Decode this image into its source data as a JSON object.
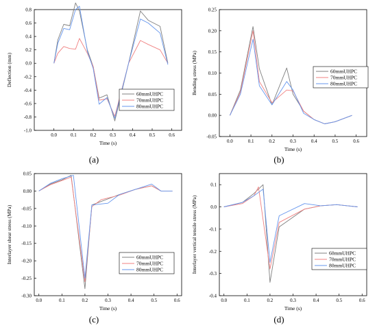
{
  "figure": {
    "legend_names": [
      "60mmUHPC",
      "70mmUHPC",
      "80mmUHPC"
    ],
    "series_colors": [
      "#7f7f7f",
      "#f08080",
      "#6495ed"
    ]
  },
  "chart_data": [
    {
      "type": "line",
      "panel_label": "(a)",
      "xlabel": "Time (s)",
      "ylabel": "Deflection (mm)",
      "xlim": [
        -0.1,
        0.65
      ],
      "ylim": [
        -1.0,
        0.8
      ],
      "xticks": [
        "0.0",
        "0.1",
        "0.2",
        "0.3",
        "0.4",
        "0.5",
        "0.6"
      ],
      "xtick_values": [
        0.0,
        0.1,
        0.2,
        0.3,
        0.4,
        0.5,
        0.6
      ],
      "yticks": [
        "-1.0",
        "-0.8",
        "-0.6",
        "-0.4",
        "-0.2",
        "0.0",
        "0.2",
        "0.4",
        "0.6",
        "0.8"
      ],
      "ytick_values": [
        -1.0,
        -0.8,
        -0.6,
        -0.4,
        -0.2,
        0.0,
        0.2,
        0.4,
        0.6,
        0.8
      ],
      "legend_position": "lower-right",
      "series": [
        {
          "name": "60mmUHPC",
          "color": "#7f7f7f",
          "x": [
            0.0,
            0.02,
            0.05,
            0.08,
            0.11,
            0.13,
            0.17,
            0.2,
            0.23,
            0.27,
            0.31,
            0.38,
            0.44,
            0.48,
            0.54,
            0.58
          ],
          "y": [
            0.0,
            0.35,
            0.58,
            0.56,
            0.9,
            0.78,
            0.2,
            -0.05,
            -0.52,
            -0.47,
            -0.86,
            0.0,
            0.78,
            0.64,
            0.55,
            0.0
          ]
        },
        {
          "name": "70mmUHPC",
          "color": "#f08080",
          "x": [
            0.0,
            0.02,
            0.05,
            0.08,
            0.11,
            0.13,
            0.17,
            0.2,
            0.23,
            0.27,
            0.31,
            0.38,
            0.44,
            0.48,
            0.54,
            0.58
          ],
          "y": [
            0.0,
            0.15,
            0.25,
            0.22,
            0.21,
            0.37,
            0.15,
            -0.05,
            -0.55,
            -0.53,
            -0.79,
            0.0,
            0.34,
            0.28,
            0.2,
            0.0
          ]
        },
        {
          "name": "80mmUHPC",
          "color": "#6495ed",
          "x": [
            0.0,
            0.02,
            0.05,
            0.08,
            0.11,
            0.13,
            0.17,
            0.2,
            0.23,
            0.27,
            0.31,
            0.38,
            0.44,
            0.48,
            0.54,
            0.58
          ],
          "y": [
            0.0,
            0.3,
            0.52,
            0.5,
            0.8,
            0.85,
            0.18,
            -0.08,
            -0.61,
            -0.51,
            -0.82,
            0.0,
            0.66,
            0.6,
            0.45,
            -0.02
          ]
        }
      ]
    },
    {
      "type": "line",
      "panel_label": "(b)",
      "xlabel": "Time (s)",
      "ylabel": "Bending stress (MPa)",
      "xlim": [
        -0.05,
        0.65
      ],
      "ylim": [
        -0.05,
        0.25
      ],
      "xticks": [
        "0.0",
        "0.1",
        "0.2",
        "0.3",
        "0.4",
        "0.5",
        "0.6"
      ],
      "xtick_values": [
        0.0,
        0.1,
        0.2,
        0.3,
        0.4,
        0.5,
        0.6
      ],
      "yticks": [
        "-0.05",
        "0.00",
        "0.05",
        "0.10",
        "0.15",
        "0.20",
        "0.25"
      ],
      "ytick_values": [
        -0.05,
        0.0,
        0.05,
        0.1,
        0.15,
        0.2,
        0.25
      ],
      "legend_position": "right",
      "series": [
        {
          "name": "60mmUHPC",
          "color": "#7f7f7f",
          "x": [
            0.0,
            0.05,
            0.11,
            0.14,
            0.2,
            0.27,
            0.3,
            0.35,
            0.4,
            0.45,
            0.5,
            0.58
          ],
          "y": [
            0.0,
            0.06,
            0.21,
            0.11,
            0.025,
            0.112,
            0.05,
            0.01,
            -0.01,
            -0.02,
            -0.015,
            0.0
          ]
        },
        {
          "name": "70mmUHPC",
          "color": "#f08080",
          "x": [
            0.0,
            0.05,
            0.11,
            0.14,
            0.2,
            0.27,
            0.3,
            0.35,
            0.4,
            0.45,
            0.5,
            0.58
          ],
          "y": [
            0.0,
            0.055,
            0.2,
            0.08,
            0.03,
            0.06,
            0.058,
            0.01,
            -0.01,
            -0.02,
            -0.015,
            0.0
          ]
        },
        {
          "name": "80mmUHPC",
          "color": "#6495ed",
          "x": [
            0.0,
            0.05,
            0.11,
            0.14,
            0.2,
            0.27,
            0.3,
            0.35,
            0.4,
            0.45,
            0.5,
            0.58
          ],
          "y": [
            0.0,
            0.05,
            0.18,
            0.07,
            0.025,
            0.08,
            0.06,
            0.005,
            -0.01,
            -0.02,
            -0.015,
            0.0
          ]
        }
      ]
    },
    {
      "type": "line",
      "panel_label": "(c)",
      "xlabel": "Time (s)",
      "ylabel": "Interlayer shear stress (MPa)",
      "xlim": [
        -0.02,
        0.62
      ],
      "ylim": [
        -0.3,
        0.05
      ],
      "xticks": [
        "0.0",
        "0.1",
        "0.2",
        "0.3",
        "0.4",
        "0.5",
        "0.6"
      ],
      "xtick_values": [
        0.0,
        0.1,
        0.2,
        0.3,
        0.4,
        0.5,
        0.6
      ],
      "yticks": [
        "-0.30",
        "-0.25",
        "-0.20",
        "-0.15",
        "-0.10",
        "-0.05",
        "0.00",
        "0.05"
      ],
      "ytick_values": [
        -0.3,
        -0.25,
        -0.2,
        -0.15,
        -0.1,
        -0.05,
        0.0,
        0.05
      ],
      "legend_position": "lower-right",
      "series": [
        {
          "name": "60mmUHPC",
          "color": "#7f7f7f",
          "x": [
            0.0,
            0.05,
            0.1,
            0.14,
            0.2,
            0.23,
            0.27,
            0.35,
            0.42,
            0.49,
            0.53,
            0.58
          ],
          "y": [
            0.0,
            0.02,
            0.032,
            0.045,
            -0.28,
            -0.04,
            -0.03,
            -0.01,
            0.005,
            0.015,
            0.0,
            0.0
          ]
        },
        {
          "name": "70mmUHPC",
          "color": "#f08080",
          "x": [
            0.0,
            0.05,
            0.1,
            0.14,
            0.2,
            0.23,
            0.27,
            0.35,
            0.42,
            0.49,
            0.53,
            0.58
          ],
          "y": [
            0.0,
            0.018,
            0.03,
            0.04,
            -0.26,
            -0.045,
            -0.025,
            -0.012,
            0.005,
            0.015,
            0.0,
            0.0
          ]
        },
        {
          "name": "80mmUHPC",
          "color": "#6495ed",
          "x": [
            0.0,
            0.05,
            0.1,
            0.15,
            0.2,
            0.23,
            0.3,
            0.35,
            0.42,
            0.49,
            0.53,
            0.58
          ],
          "y": [
            0.0,
            0.022,
            0.035,
            0.045,
            -0.25,
            -0.04,
            -0.035,
            -0.01,
            0.005,
            0.02,
            0.0,
            0.0
          ]
        }
      ]
    },
    {
      "type": "line",
      "panel_label": "(d)",
      "xlabel": "Time (s)",
      "ylabel": "Interlayer vertical tensile stress (MPa)",
      "xlim": [
        -0.02,
        0.62
      ],
      "ylim": [
        -0.4,
        0.15
      ],
      "xticks": [
        "0.0",
        "0.1",
        "0.2",
        "0.3",
        "0.4",
        "0.5",
        "0.6"
      ],
      "xtick_values": [
        0.0,
        0.1,
        0.2,
        0.3,
        0.4,
        0.5,
        0.6
      ],
      "yticks": [
        "-0.4",
        "-0.3",
        "-0.2",
        "-0.1",
        "0.0",
        "0.1"
      ],
      "ytick_values": [
        -0.4,
        -0.3,
        -0.2,
        -0.1,
        0.0,
        0.1
      ],
      "legend_position": "lower-right",
      "series": [
        {
          "name": "60mmUHPC",
          "color": "#7f7f7f",
          "x": [
            0.0,
            0.08,
            0.13,
            0.17,
            0.2,
            0.24,
            0.35,
            0.42,
            0.49,
            0.58
          ],
          "y": [
            0.0,
            0.02,
            0.06,
            0.1,
            -0.34,
            -0.09,
            -0.01,
            0.005,
            0.01,
            0.0
          ]
        },
        {
          "name": "70mmUHPC",
          "color": "#f08080",
          "x": [
            0.0,
            0.08,
            0.13,
            0.15,
            0.2,
            0.24,
            0.35,
            0.42,
            0.49,
            0.58
          ],
          "y": [
            0.0,
            0.015,
            0.05,
            0.09,
            -0.28,
            -0.07,
            -0.01,
            0.005,
            0.01,
            0.0
          ]
        },
        {
          "name": "80mmUHPC",
          "color": "#6495ed",
          "x": [
            0.0,
            0.08,
            0.13,
            0.17,
            0.2,
            0.24,
            0.35,
            0.42,
            0.49,
            0.58
          ],
          "y": [
            0.0,
            0.02,
            0.05,
            0.08,
            -0.25,
            -0.04,
            0.015,
            0.005,
            0.01,
            0.0
          ]
        }
      ]
    }
  ]
}
